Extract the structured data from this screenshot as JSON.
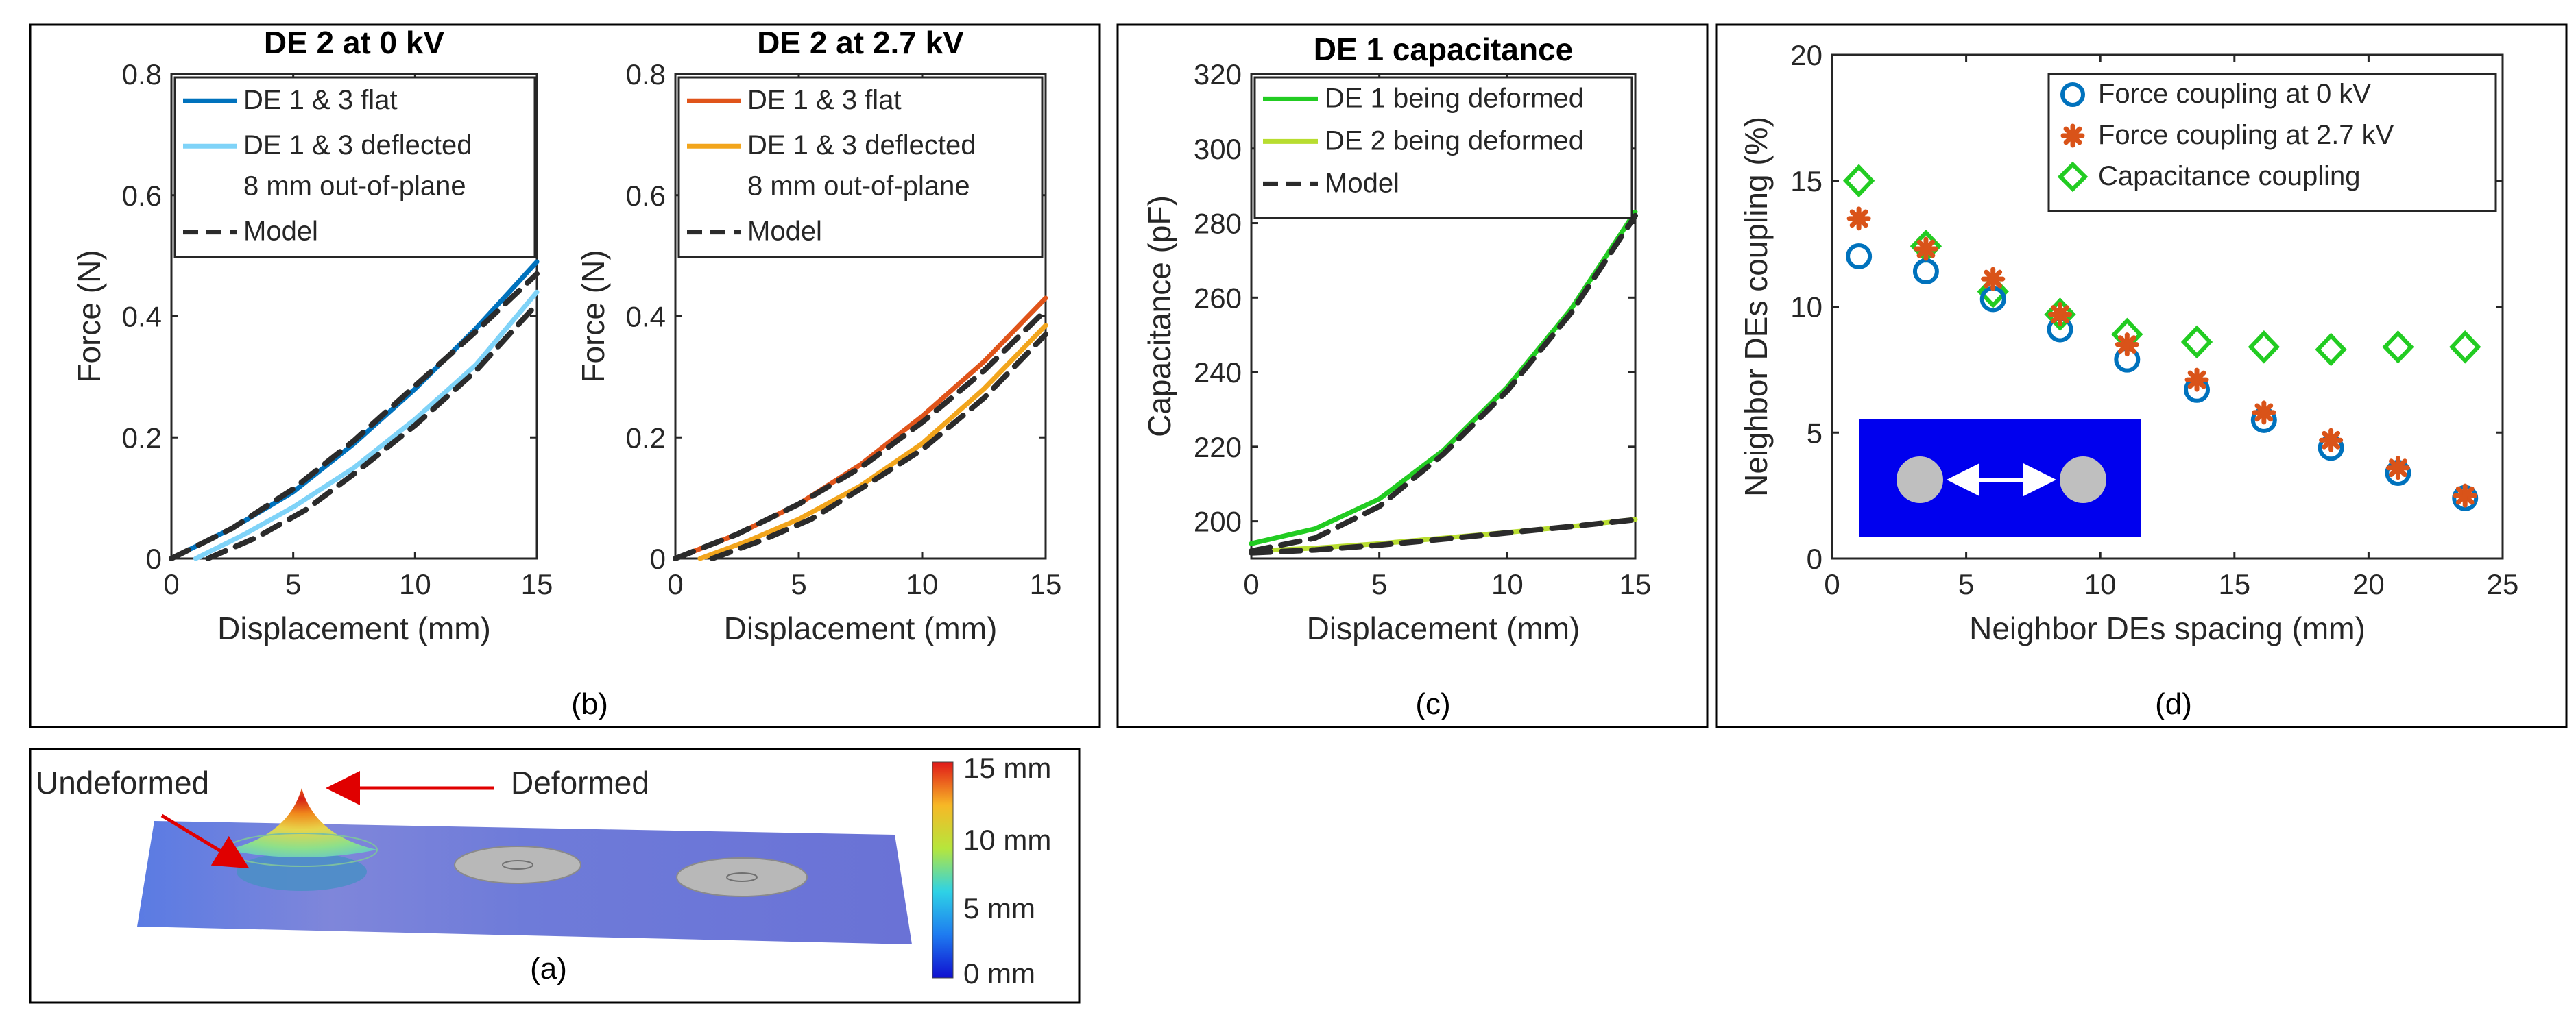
{
  "panels": {
    "a": {
      "label": "(a)",
      "annot_undeformed": "Undeformed",
      "annot_deformed": "Deformed",
      "colorbar_ticks": [
        "15 mm",
        "10 mm",
        "5 mm",
        "0 mm"
      ]
    },
    "b": {
      "label": "(b)"
    },
    "c": {
      "label": "(c)"
    },
    "d": {
      "label": "(d)"
    }
  },
  "colors": {
    "blue_dark": "#0072BD",
    "blue_light": "#7FD3F8",
    "orange_dark": "#E0541A",
    "orange_light": "#F2A51C",
    "green_dark": "#22CC22",
    "green_light": "#B8DD30",
    "model": "#2B2B2B",
    "circle": "#0072BD",
    "asterisk": "#D95319",
    "diamond": "#22CC22",
    "inset_bg": "#0000EE"
  },
  "chart_data": [
    {
      "id": "b1",
      "type": "line",
      "title": "DE 2 at 0 kV",
      "xlabel": "Displacement (mm)",
      "ylabel": "Force (N)",
      "xlim": [
        0,
        15
      ],
      "ylim": [
        0,
        0.8
      ],
      "xticks": [
        0,
        5,
        10,
        15
      ],
      "yticks": [
        0,
        0.2,
        0.4,
        0.6,
        0.8
      ],
      "xtick_labels": [
        "0",
        "5",
        "10",
        "15"
      ],
      "ytick_labels": [
        "0",
        "0.2",
        "0.4",
        "0.6",
        "0.8"
      ],
      "series": [
        {
          "name": "DE 1 & 3 flat",
          "x": [
            0,
            2.5,
            5,
            7.5,
            10,
            12.5,
            15
          ],
          "values": [
            0,
            0.05,
            0.11,
            0.19,
            0.28,
            0.38,
            0.49
          ]
        },
        {
          "name": "DE 1 & 3 deflected",
          "name2": "8 mm out-of-plane",
          "x": [
            1,
            3,
            5,
            7.5,
            10,
            12.5,
            15
          ],
          "values": [
            0,
            0.04,
            0.085,
            0.15,
            0.23,
            0.32,
            0.44
          ]
        },
        {
          "name": "Model",
          "x": [
            0,
            2.5,
            5,
            7.5,
            10,
            12.5,
            15
          ],
          "values": [
            0,
            0.05,
            0.115,
            0.195,
            0.285,
            0.375,
            0.47
          ]
        },
        {
          "name": "",
          "x": [
            1.5,
            3.5,
            5.5,
            7.5,
            10,
            12.5,
            15
          ],
          "values": [
            0,
            0.035,
            0.08,
            0.14,
            0.22,
            0.31,
            0.42
          ]
        }
      ]
    },
    {
      "id": "b2",
      "type": "line",
      "title": "DE 2 at 2.7 kV",
      "xlabel": "Displacement (mm)",
      "ylabel": "Force (N)",
      "xlim": [
        0,
        15
      ],
      "ylim": [
        0,
        0.8
      ],
      "xticks": [
        0,
        5,
        10,
        15
      ],
      "yticks": [
        0,
        0.2,
        0.4,
        0.6,
        0.8
      ],
      "xtick_labels": [
        "0",
        "5",
        "10",
        "15"
      ],
      "ytick_labels": [
        "0",
        "0.2",
        "0.4",
        "0.6",
        "0.8"
      ],
      "series": [
        {
          "name": "DE 1 & 3 flat",
          "x": [
            0,
            2.5,
            5,
            7.5,
            10,
            12.5,
            15
          ],
          "values": [
            0,
            0.04,
            0.09,
            0.155,
            0.235,
            0.325,
            0.43
          ]
        },
        {
          "name": "DE 1 & 3 deflected",
          "name2": "8 mm out-of-plane",
          "x": [
            1,
            3,
            5,
            7.5,
            10,
            12.5,
            15
          ],
          "values": [
            0,
            0.03,
            0.065,
            0.12,
            0.19,
            0.28,
            0.385
          ]
        },
        {
          "name": "Model",
          "x": [
            0,
            2.5,
            5,
            7.5,
            10,
            12.5,
            15
          ],
          "values": [
            0,
            0.04,
            0.09,
            0.15,
            0.225,
            0.31,
            0.41
          ]
        },
        {
          "name": "",
          "x": [
            1.5,
            3.5,
            5.5,
            7.5,
            10,
            12.5,
            15
          ],
          "values": [
            0,
            0.03,
            0.065,
            0.115,
            0.18,
            0.265,
            0.37
          ]
        }
      ]
    },
    {
      "id": "c",
      "type": "line",
      "title": "DE 1 capacitance",
      "xlabel": "Displacement (mm)",
      "ylabel": "Capacitance (pF)",
      "xlim": [
        0,
        15
      ],
      "ylim": [
        190,
        320
      ],
      "xticks": [
        0,
        5,
        10,
        15
      ],
      "yticks": [
        200,
        220,
        240,
        260,
        280,
        300,
        320
      ],
      "xtick_labels": [
        "0",
        "5",
        "10",
        "15"
      ],
      "ytick_labels": [
        "200",
        "220",
        "240",
        "260",
        "280",
        "300",
        "320"
      ],
      "series": [
        {
          "name": "DE 1 being deformed",
          "x": [
            0,
            2.5,
            5,
            7.5,
            10,
            12.5,
            15
          ],
          "values": [
            194,
            198,
            206,
            219,
            236,
            257,
            283
          ]
        },
        {
          "name": "DE 2 being deformed",
          "x": [
            0,
            2.5,
            5,
            7.5,
            10,
            12.5,
            15
          ],
          "values": [
            192,
            192.8,
            194,
            195.5,
            197,
            198.6,
            200.5
          ]
        },
        {
          "name": "Model",
          "x": [
            0,
            2.5,
            5,
            7.5,
            10,
            12.5,
            15
          ],
          "values": [
            192,
            195.5,
            204,
            218,
            235,
            256,
            282
          ]
        },
        {
          "name": "",
          "x": [
            0,
            2.5,
            5,
            7.5,
            10,
            12.5,
            15
          ],
          "values": [
            191.5,
            192.3,
            193.6,
            195.2,
            196.9,
            198.6,
            200.4
          ]
        }
      ]
    },
    {
      "id": "d",
      "type": "scatter",
      "xlabel": "Neighbor DEs spacing (mm)",
      "ylabel": "Neighbor DEs coupling (%)",
      "xlim": [
        0,
        25
      ],
      "ylim": [
        0,
        20
      ],
      "xticks": [
        0,
        5,
        10,
        15,
        20,
        25
      ],
      "yticks": [
        0,
        5,
        10,
        15,
        20
      ],
      "xtick_labels": [
        "0",
        "5",
        "10",
        "15",
        "20",
        "25"
      ],
      "ytick_labels": [
        "0",
        "5",
        "10",
        "15",
        "20"
      ],
      "series": [
        {
          "name": "Force coupling at 0 kV",
          "x": [
            1,
            3.5,
            6,
            8.5,
            11,
            13.6,
            16.1,
            18.6,
            21.1,
            23.6
          ],
          "values": [
            12.0,
            11.4,
            10.3,
            9.1,
            7.9,
            6.7,
            5.5,
            4.4,
            3.4,
            2.4
          ]
        },
        {
          "name": "Force coupling at 2.7 kV",
          "x": [
            1,
            3.5,
            6,
            8.5,
            11,
            13.6,
            16.1,
            18.6,
            21.1,
            23.6
          ],
          "values": [
            13.5,
            12.3,
            11.1,
            9.7,
            8.5,
            7.1,
            5.8,
            4.7,
            3.6,
            2.5
          ]
        },
        {
          "name": "Capacitance coupling",
          "x": [
            1,
            3.5,
            6,
            8.5,
            11,
            13.6,
            16.1,
            18.6,
            21.1,
            23.6
          ],
          "values": [
            15.0,
            12.4,
            10.6,
            9.7,
            8.9,
            8.6,
            8.4,
            8.3,
            8.4,
            8.4
          ]
        }
      ]
    }
  ]
}
